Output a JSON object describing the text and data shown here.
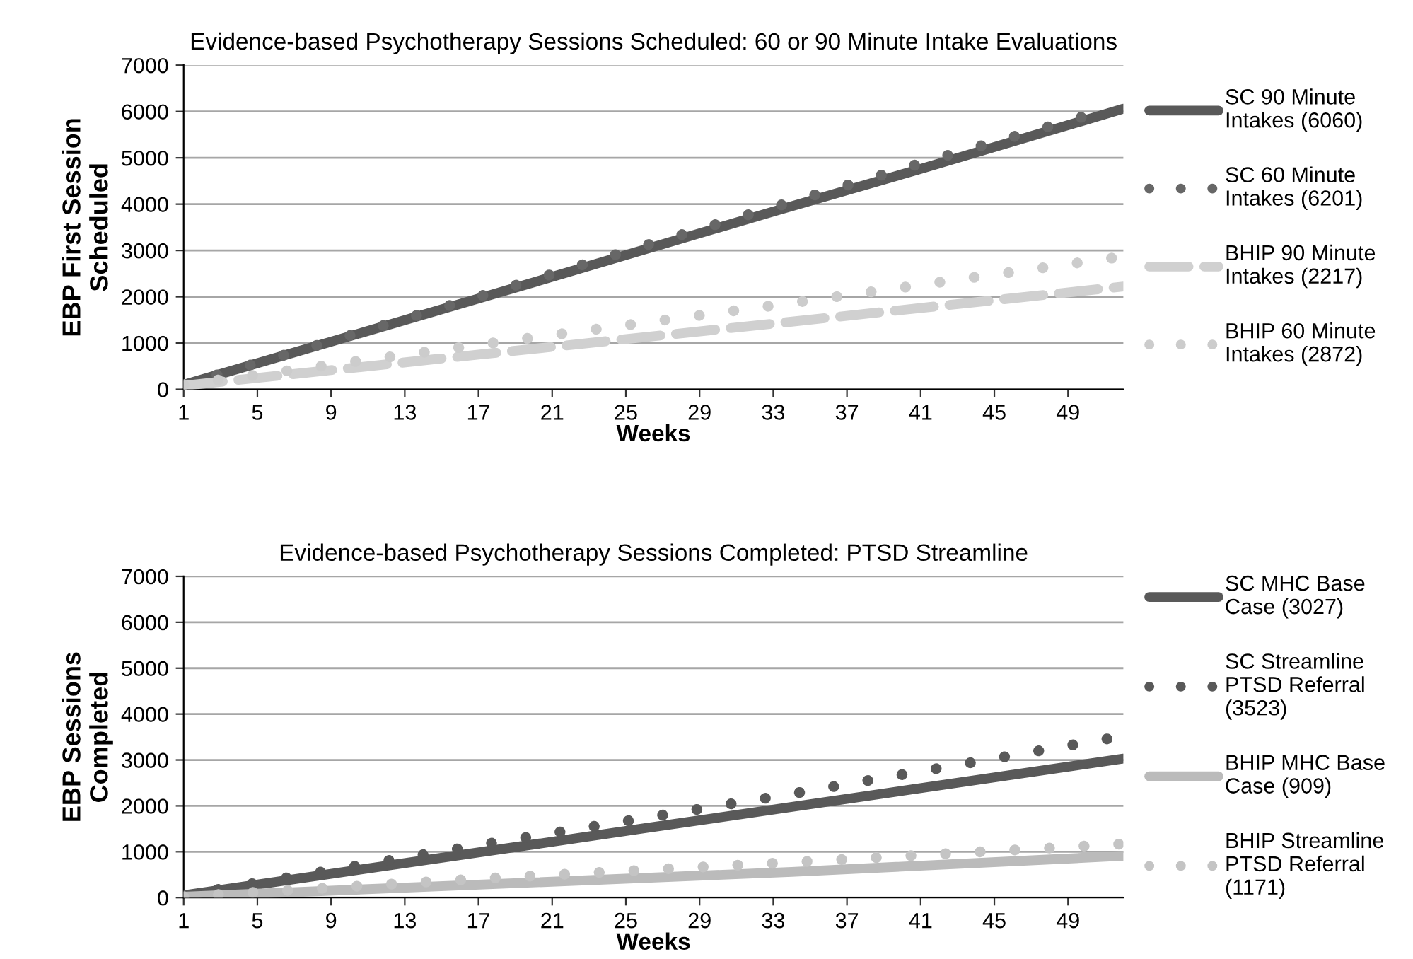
{
  "chart_data": [
    {
      "type": "line",
      "title": "Evidence-based Psychotherapy Sessions Scheduled: 60 or 90 Minute Intake Evaluations",
      "xlabel": "Weeks",
      "ylabel": "EBP First Session Scheduled",
      "xlim": [
        1,
        52
      ],
      "xticks": [
        1,
        5,
        9,
        13,
        17,
        21,
        25,
        29,
        33,
        37,
        41,
        45,
        49
      ],
      "ylim": [
        0,
        7000
      ],
      "yticks": [
        0,
        1000,
        2000,
        3000,
        4000,
        5000,
        6000,
        7000
      ],
      "grid": "y",
      "legend": "right",
      "marker": "none",
      "series": [
        {
          "name": "SC 90 Minute Intakes (6060)",
          "color": "#595959",
          "line_style": "solid",
          "x": [
            1,
            9,
            17,
            25,
            33,
            41,
            52
          ],
          "values": [
            100,
            1030,
            1960,
            2900,
            3840,
            4760,
            6060
          ]
        },
        {
          "name": "SC 60 Minute Intakes (6201)",
          "color": "#676767",
          "line_style": "dotted",
          "x": [
            1,
            9,
            17,
            26,
            34,
            42,
            51
          ],
          "values": [
            100,
            1040,
            2000,
            3100,
            4050,
            5000,
            6020
          ]
        },
        {
          "name": "BHIP 90 Minute Intakes (2217)",
          "color": "#d0d0d0",
          "line_style": "dashed",
          "x": [
            1,
            17,
            33,
            52
          ],
          "values": [
            80,
            750,
            1420,
            2220
          ]
        },
        {
          "name": "BHIP 60 Minute Intakes (2872)",
          "color": "#cccccc",
          "line_style": "dotted",
          "x": [
            1,
            17,
            33,
            52
          ],
          "values": [
            100,
            960,
            1810,
            2870
          ]
        }
      ]
    },
    {
      "type": "line",
      "title": "Evidence-based Psychotherapy Sessions Completed: PTSD Streamline",
      "xlabel": "Weeks",
      "ylabel": "EBP Sessions Completed",
      "xlim": [
        1,
        52
      ],
      "xticks": [
        1,
        5,
        9,
        13,
        17,
        21,
        25,
        29,
        33,
        37,
        41,
        45,
        49
      ],
      "ylim": [
        0,
        7000
      ],
      "yticks": [
        0,
        1000,
        2000,
        3000,
        4000,
        5000,
        6000,
        7000
      ],
      "grid": "y",
      "legend": "right",
      "marker": "none",
      "series": [
        {
          "name": "SC MHC Base Case (3027)",
          "color": "#595959",
          "line_style": "solid",
          "x": [
            1,
            26,
            52
          ],
          "values": [
            50,
            1510,
            3030
          ]
        },
        {
          "name": "SC Streamline PTSD Referral (3523)",
          "color": "#595959",
          "line_style": "dotted",
          "x": [
            1,
            17,
            34,
            52
          ],
          "values": [
            50,
            1140,
            2260,
            3520
          ]
        },
        {
          "name": "BHIP MHC Base Case (909)",
          "color": "#bbbbbb",
          "line_style": "solid",
          "x": [
            1,
            34,
            52
          ],
          "values": [
            20,
            560,
            910
          ]
        },
        {
          "name": "BHIP Streamline PTSD Referral (1171)",
          "color": "#c4c4c4",
          "line_style": "dotted",
          "x": [
            1,
            17,
            34,
            52
          ],
          "values": [
            20,
            410,
            770,
            1170
          ]
        }
      ]
    }
  ]
}
